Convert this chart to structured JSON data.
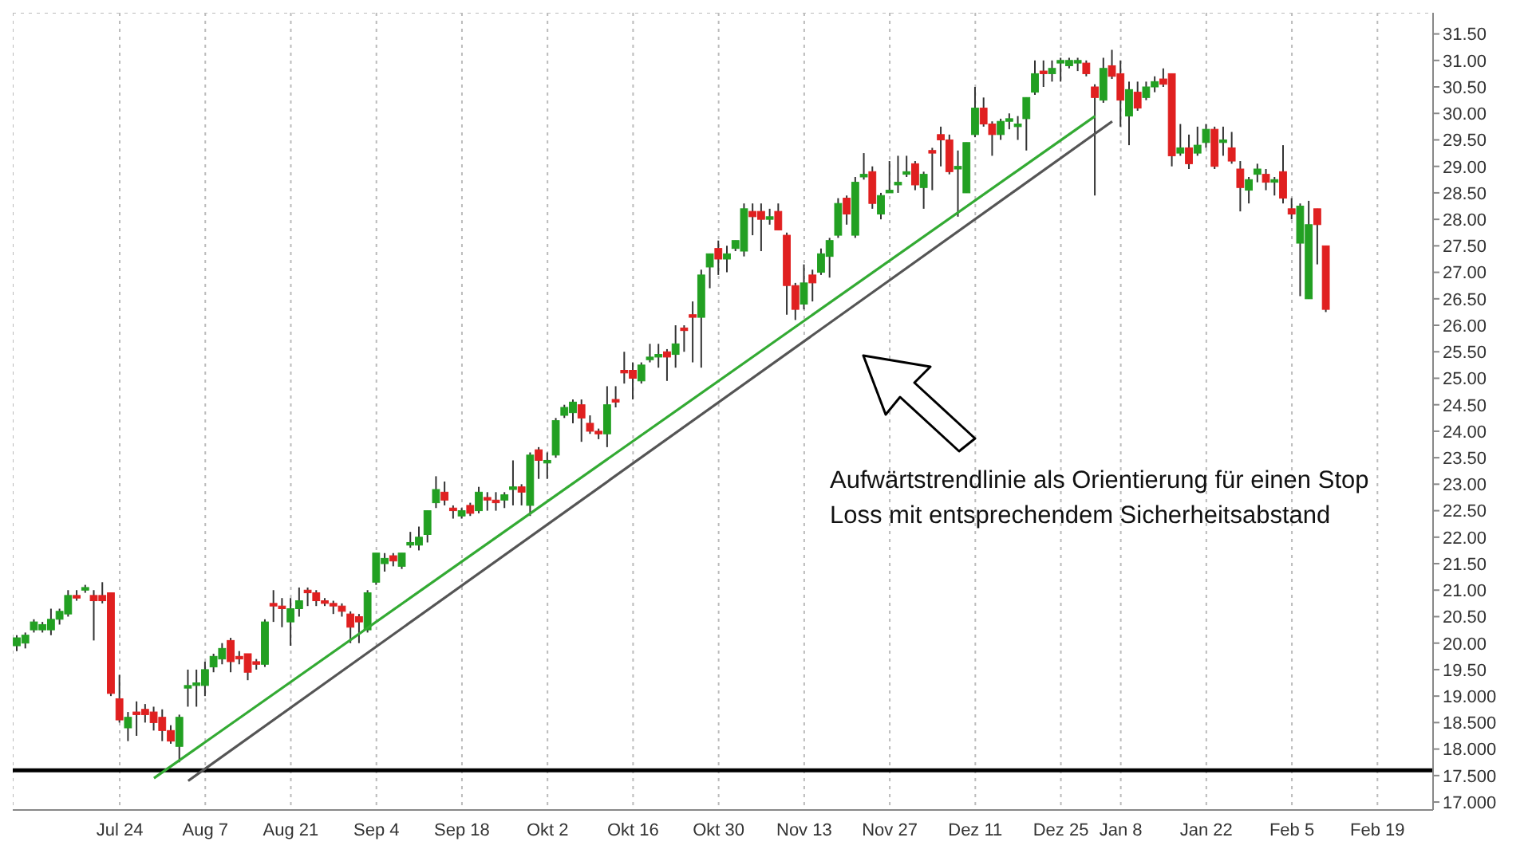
{
  "chart_data": {
    "type": "candlestick",
    "categories": [
      null,
      null,
      null,
      null,
      null,
      null,
      null,
      null,
      null,
      null,
      null,
      null,
      "Jul 24",
      null,
      null,
      null,
      null,
      null,
      null,
      null,
      null,
      null,
      "Aug 7",
      null,
      null,
      null,
      null,
      null,
      null,
      null,
      null,
      null,
      "Aug 21",
      null,
      null,
      null,
      null,
      null,
      null,
      null,
      null,
      null,
      "Sep 4",
      null,
      null,
      null,
      null,
      null,
      null,
      null,
      null,
      null,
      "Sep 18",
      null,
      null,
      null,
      null,
      null,
      null,
      null,
      null,
      null,
      "Okt 2",
      null,
      null,
      null,
      null,
      null,
      null,
      null,
      null,
      null,
      "Okt 16",
      null,
      null,
      null,
      null,
      null,
      null,
      null,
      null,
      null,
      "Okt 30",
      null,
      null,
      null,
      null,
      null,
      null,
      null,
      null,
      null,
      "Nov 13",
      null,
      null,
      null,
      null,
      null,
      null,
      null,
      null,
      null,
      "Nov 27",
      null,
      null,
      null,
      null,
      null,
      null,
      null,
      null,
      null,
      "Dez 11",
      null,
      null,
      null,
      null,
      null,
      null,
      null,
      null,
      null,
      "Dez 25",
      null,
      null,
      null,
      null,
      null,
      null,
      "Jan 8",
      null,
      null,
      null,
      null,
      null,
      null,
      null,
      null,
      null,
      "Jan 22",
      null,
      null,
      null,
      null,
      null,
      null,
      null,
      null,
      null,
      "Feb 5",
      null,
      null,
      null,
      null,
      null,
      null,
      null,
      null,
      null,
      "Feb 19",
      null,
      null,
      null,
      null,
      null,
      null
    ],
    "ohlc": [
      [
        19.95,
        20.15,
        19.85,
        20.1
      ],
      [
        20.0,
        20.2,
        19.9,
        20.15
      ],
      [
        20.25,
        20.45,
        20.2,
        20.4
      ],
      [
        20.25,
        20.4,
        20.2,
        20.35
      ],
      [
        20.25,
        20.65,
        20.15,
        20.45
      ],
      [
        20.45,
        20.65,
        20.35,
        20.6
      ],
      [
        20.55,
        21.0,
        20.5,
        20.9
      ],
      [
        20.9,
        21.0,
        20.8,
        20.85
      ],
      [
        21.0,
        21.1,
        20.95,
        21.05
      ],
      [
        20.9,
        21.0,
        20.05,
        20.8
      ],
      [
        20.9,
        21.15,
        20.75,
        20.8
      ],
      [
        20.95,
        20.95,
        19.0,
        19.05
      ],
      [
        18.95,
        19.4,
        18.5,
        18.55
      ],
      [
        18.4,
        18.7,
        18.15,
        18.6
      ],
      [
        18.7,
        18.9,
        18.25,
        18.65
      ],
      [
        18.75,
        18.85,
        18.5,
        18.65
      ],
      [
        18.7,
        18.8,
        18.35,
        18.5
      ],
      [
        18.6,
        18.75,
        18.15,
        18.35
      ],
      [
        18.35,
        18.45,
        18.1,
        18.15
      ],
      [
        18.05,
        18.65,
        17.75,
        18.6
      ],
      [
        19.15,
        19.5,
        18.8,
        19.2
      ],
      [
        19.2,
        19.5,
        18.8,
        19.25
      ],
      [
        19.2,
        19.65,
        19.0,
        19.5
      ],
      [
        19.55,
        19.8,
        19.45,
        19.75
      ],
      [
        19.7,
        20.0,
        19.6,
        19.9
      ],
      [
        20.05,
        20.1,
        19.45,
        19.65
      ],
      [
        19.75,
        19.85,
        19.6,
        19.7
      ],
      [
        19.8,
        19.8,
        19.3,
        19.45
      ],
      [
        19.65,
        19.7,
        19.5,
        19.6
      ],
      [
        19.6,
        20.45,
        19.55,
        20.4
      ],
      [
        20.75,
        21.0,
        20.4,
        20.7
      ],
      [
        20.7,
        20.85,
        20.3,
        20.65
      ],
      [
        20.4,
        20.85,
        19.95,
        20.65
      ],
      [
        20.65,
        21.05,
        20.5,
        20.8
      ],
      [
        21.0,
        21.05,
        20.7,
        20.95
      ],
      [
        20.95,
        21.0,
        20.7,
        20.8
      ],
      [
        20.8,
        20.85,
        20.7,
        20.75
      ],
      [
        20.75,
        20.8,
        20.55,
        20.7
      ],
      [
        20.7,
        20.75,
        20.5,
        20.6
      ],
      [
        20.55,
        20.6,
        20.0,
        20.3
      ],
      [
        20.5,
        20.55,
        20.0,
        20.4
      ],
      [
        20.25,
        21.0,
        20.2,
        20.95
      ],
      [
        21.15,
        21.7,
        21.1,
        21.7
      ],
      [
        21.5,
        21.7,
        21.35,
        21.6
      ],
      [
        21.65,
        21.7,
        21.45,
        21.55
      ],
      [
        21.45,
        21.7,
        21.4,
        21.7
      ],
      [
        21.85,
        22.1,
        21.8,
        21.9
      ],
      [
        21.85,
        22.2,
        21.75,
        22.0
      ],
      [
        22.05,
        22.5,
        21.9,
        22.5
      ],
      [
        22.65,
        23.15,
        22.55,
        22.9
      ],
      [
        22.85,
        23.05,
        22.6,
        22.7
      ],
      [
        22.55,
        22.6,
        22.35,
        22.5
      ],
      [
        22.4,
        22.55,
        22.35,
        22.5
      ],
      [
        22.6,
        22.65,
        22.4,
        22.45
      ],
      [
        22.5,
        22.95,
        22.45,
        22.85
      ],
      [
        22.75,
        22.85,
        22.5,
        22.7
      ],
      [
        22.7,
        22.85,
        22.5,
        22.65
      ],
      [
        22.7,
        22.85,
        22.55,
        22.8
      ],
      [
        22.9,
        23.45,
        22.6,
        22.95
      ],
      [
        22.95,
        23.0,
        22.6,
        22.85
      ],
      [
        22.6,
        23.6,
        22.4,
        23.55
      ],
      [
        23.65,
        23.7,
        23.1,
        23.45
      ],
      [
        23.4,
        23.6,
        23.1,
        23.45
      ],
      [
        23.55,
        24.25,
        23.5,
        24.2
      ],
      [
        24.3,
        24.5,
        24.25,
        24.45
      ],
      [
        24.35,
        24.6,
        24.15,
        24.55
      ],
      [
        24.5,
        24.6,
        23.8,
        24.25
      ],
      [
        24.15,
        24.3,
        23.95,
        24.0
      ],
      [
        24.0,
        24.05,
        23.85,
        23.95
      ],
      [
        23.95,
        24.85,
        23.7,
        24.5
      ],
      [
        24.6,
        24.85,
        24.45,
        24.55
      ],
      [
        25.15,
        25.5,
        24.9,
        25.1
      ],
      [
        25.15,
        25.3,
        24.6,
        25.0
      ],
      [
        24.95,
        25.3,
        24.9,
        25.25
      ],
      [
        25.35,
        25.65,
        25.3,
        25.4
      ],
      [
        25.4,
        25.65,
        25.2,
        25.45
      ],
      [
        25.5,
        25.55,
        24.95,
        25.4
      ],
      [
        25.45,
        26.0,
        25.2,
        25.65
      ],
      [
        25.95,
        26.0,
        25.5,
        25.9
      ],
      [
        26.2,
        26.45,
        25.3,
        26.15
      ],
      [
        26.15,
        27.05,
        25.2,
        26.95
      ],
      [
        27.1,
        27.35,
        26.7,
        27.35
      ],
      [
        27.45,
        27.6,
        26.95,
        27.25
      ],
      [
        27.25,
        27.5,
        27.0,
        27.35
      ],
      [
        27.45,
        27.6,
        27.4,
        27.6
      ],
      [
        27.4,
        28.3,
        27.3,
        28.2
      ],
      [
        28.15,
        28.3,
        27.7,
        28.05
      ],
      [
        28.15,
        28.3,
        27.4,
        28.0
      ],
      [
        28.0,
        28.2,
        27.9,
        28.05
      ],
      [
        28.15,
        28.3,
        27.8,
        27.8
      ],
      [
        27.7,
        27.75,
        26.2,
        26.75
      ],
      [
        26.75,
        26.8,
        26.1,
        26.3
      ],
      [
        26.4,
        27.15,
        26.3,
        26.8
      ],
      [
        26.95,
        27.05,
        26.45,
        26.8
      ],
      [
        27.0,
        27.45,
        26.95,
        27.35
      ],
      [
        27.3,
        27.65,
        26.9,
        27.6
      ],
      [
        27.7,
        28.4,
        27.65,
        28.3
      ],
      [
        28.4,
        28.45,
        27.9,
        28.1
      ],
      [
        27.7,
        28.8,
        27.65,
        28.7
      ],
      [
        28.8,
        29.25,
        28.75,
        28.85
      ],
      [
        28.9,
        29.0,
        28.2,
        28.3
      ],
      [
        28.1,
        28.5,
        28.0,
        28.45
      ],
      [
        28.5,
        29.1,
        28.5,
        28.55
      ],
      [
        28.65,
        29.2,
        28.5,
        28.7
      ],
      [
        28.85,
        29.2,
        28.8,
        28.9
      ],
      [
        29.05,
        29.1,
        28.55,
        28.65
      ],
      [
        28.6,
        28.9,
        28.2,
        28.85
      ],
      [
        29.3,
        29.35,
        28.55,
        29.25
      ],
      [
        29.6,
        29.75,
        29.0,
        29.5
      ],
      [
        29.5,
        29.6,
        28.85,
        28.9
      ],
      [
        28.95,
        29.3,
        28.05,
        29.0
      ],
      [
        28.5,
        29.45,
        28.5,
        29.45
      ],
      [
        29.6,
        30.5,
        29.55,
        30.1
      ],
      [
        30.1,
        30.3,
        29.75,
        29.8
      ],
      [
        29.8,
        29.85,
        29.2,
        29.6
      ],
      [
        29.6,
        29.9,
        29.5,
        29.85
      ],
      [
        29.85,
        30.0,
        29.7,
        29.9
      ],
      [
        29.75,
        29.95,
        29.5,
        29.8
      ],
      [
        29.9,
        30.3,
        29.3,
        30.3
      ],
      [
        30.4,
        31.0,
        30.35,
        30.75
      ],
      [
        30.8,
        31.0,
        30.5,
        30.75
      ],
      [
        30.75,
        31.0,
        30.6,
        30.85
      ],
      [
        30.95,
        31.05,
        30.6,
        31.0
      ],
      [
        30.9,
        31.05,
        30.85,
        31.0
      ],
      [
        30.95,
        31.05,
        30.8,
        31.0
      ],
      [
        30.95,
        31.0,
        30.7,
        30.75
      ],
      [
        30.5,
        30.55,
        28.45,
        30.3
      ],
      [
        30.25,
        31.05,
        30.2,
        30.85
      ],
      [
        30.9,
        31.2,
        30.65,
        30.7
      ],
      [
        30.75,
        31.0,
        29.75,
        30.25
      ],
      [
        29.95,
        30.6,
        29.4,
        30.45
      ],
      [
        30.4,
        30.6,
        30.05,
        30.1
      ],
      [
        30.3,
        30.6,
        30.25,
        30.5
      ],
      [
        30.5,
        30.7,
        30.4,
        30.6
      ],
      [
        30.65,
        30.85,
        30.5,
        30.55
      ],
      [
        30.75,
        30.75,
        29.0,
        29.2
      ],
      [
        29.25,
        29.8,
        29.2,
        29.35
      ],
      [
        29.35,
        29.6,
        28.95,
        29.05
      ],
      [
        29.25,
        29.75,
        29.2,
        29.4
      ],
      [
        29.45,
        29.8,
        29.35,
        29.7
      ],
      [
        29.7,
        29.75,
        28.95,
        29.0
      ],
      [
        29.45,
        29.75,
        29.2,
        29.5
      ],
      [
        29.35,
        29.65,
        29.05,
        29.1
      ],
      [
        28.95,
        29.1,
        28.15,
        28.6
      ],
      [
        28.55,
        28.8,
        28.3,
        28.75
      ],
      [
        28.85,
        29.05,
        28.7,
        28.95
      ],
      [
        28.85,
        28.95,
        28.55,
        28.7
      ],
      [
        28.7,
        28.8,
        28.45,
        28.75
      ],
      [
        28.9,
        29.4,
        28.3,
        28.4
      ],
      [
        28.2,
        28.4,
        28.0,
        28.1
      ],
      [
        27.55,
        28.3,
        26.55,
        28.25
      ],
      [
        26.5,
        28.35,
        26.5,
        27.9
      ],
      [
        28.2,
        28.2,
        27.15,
        27.9
      ],
      [
        27.5,
        27.5,
        26.25,
        26.3
      ],
      null,
      null,
      null,
      null,
      null,
      null,
      null,
      null,
      null,
      null,
      null,
      null
    ],
    "colors": [
      "#22a022",
      "#22a022",
      "#22a022",
      "#22a022",
      "#22a022",
      "#22a022",
      "#22a022",
      "#e02020",
      "#22a022",
      "#e02020",
      "#e02020",
      "#e02020",
      "#e02020",
      "#22a022",
      "#e02020",
      "#e02020",
      "#e02020",
      "#e02020",
      "#e02020",
      "#22a022",
      "#22a022",
      "#22a022",
      "#22a022",
      "#22a022",
      "#22a022",
      "#e02020",
      "#e02020",
      "#e02020",
      "#e02020",
      "#22a022",
      "#e02020",
      "#e02020",
      "#22a022",
      "#22a022",
      "#e02020",
      "#e02020",
      "#e02020",
      "#e02020",
      "#e02020",
      "#e02020",
      "#e02020",
      "#22a022",
      "#22a022",
      "#22a022",
      "#e02020",
      "#22a022",
      "#22a022",
      "#22a022",
      "#22a022",
      "#22a022",
      "#e02020",
      "#e02020",
      "#22a022",
      "#e02020",
      "#22a022",
      "#e02020",
      "#e02020",
      "#22a022",
      "#22a022",
      "#e02020",
      "#22a022",
      "#e02020",
      "#22a022",
      "#22a022",
      "#22a022",
      "#22a022",
      "#e02020",
      "#e02020",
      "#e02020",
      "#22a022",
      "#e02020",
      "#e02020",
      "#e02020",
      "#22a022",
      "#22a022",
      "#22a022",
      "#e02020",
      "#22a022",
      "#e02020",
      "#e02020",
      "#22a022",
      "#22a022",
      "#e02020",
      "#22a022",
      "#22a022",
      "#22a022",
      "#e02020",
      "#e02020",
      "#22a022",
      "#e02020",
      "#e02020",
      "#e02020",
      "#22a022",
      "#e02020",
      "#22a022",
      "#22a022",
      "#22a022",
      "#e02020",
      "#22a022",
      "#22a022",
      "#e02020",
      "#22a022",
      "#22a022",
      "#22a022",
      "#22a022",
      "#e02020",
      "#22a022",
      "#e02020",
      "#e02020",
      "#e02020",
      "#22a022",
      "#22a022",
      "#22a022",
      "#e02020",
      "#e02020",
      "#22a022",
      "#22a022",
      "#22a022",
      "#22a022",
      "#22a022",
      "#e02020",
      "#22a022",
      "#22a022",
      "#22a022",
      "#22a022",
      "#e02020",
      "#e02020",
      "#22a022",
      "#e02020",
      "#e02020",
      "#22a022",
      "#e02020",
      "#22a022",
      "#22a022",
      "#e02020",
      "#e02020",
      "#22a022",
      "#e02020",
      "#22a022",
      "#22a022",
      "#e02020",
      "#22a022",
      "#e02020",
      "#e02020",
      "#22a022",
      "#22a022",
      "#e02020",
      "#22a022",
      "#e02020",
      "#e02020",
      "#22a022",
      "#22a022",
      "#e02020",
      "#e02020",
      null,
      null,
      null,
      null,
      null,
      null,
      null,
      null,
      null,
      null,
      null,
      null
    ],
    "series": [
      {
        "type": "line",
        "color": "#33aa33",
        "values": [
          null,
          null,
          null,
          null,
          null,
          null,
          null,
          null,
          null,
          null,
          null,
          null,
          null,
          null,
          null,
          null,
          17.45,
          null,
          null,
          null,
          null,
          null,
          null,
          null,
          null,
          null,
          null,
          null,
          null,
          null,
          null,
          null,
          null,
          null,
          null,
          null,
          null,
          null,
          null,
          null,
          null,
          null,
          null,
          null,
          null,
          null,
          null,
          null,
          null,
          null,
          null,
          null,
          null,
          null,
          null,
          null,
          null,
          null,
          null,
          null,
          null,
          null,
          null,
          null,
          null,
          null,
          null,
          null,
          null,
          null,
          null,
          null,
          null,
          null,
          null,
          null,
          null,
          null,
          null,
          null,
          null,
          null,
          null,
          null,
          null,
          null,
          null,
          null,
          null,
          null,
          null,
          null,
          null,
          null,
          null,
          null,
          null,
          null,
          null,
          null,
          null,
          null,
          null,
          null,
          null,
          null,
          null,
          null,
          null,
          null,
          null,
          null,
          null,
          null,
          null,
          null,
          null,
          null,
          null,
          null,
          null,
          null,
          null,
          null,
          null,
          null,
          29.95,
          null,
          null,
          null,
          null,
          null,
          null,
          null,
          null,
          null,
          null,
          null,
          null,
          null,
          null,
          null,
          null,
          null,
          null,
          null,
          null,
          null,
          null,
          null,
          null,
          null,
          null,
          null,
          null,
          null,
          null,
          null,
          null,
          null,
          null,
          null,
          null,
          null,
          null,
          null
        ]
      },
      {
        "type": "line",
        "color": "#555555",
        "values": [
          null,
          null,
          null,
          null,
          null,
          null,
          null,
          null,
          null,
          null,
          null,
          null,
          null,
          null,
          null,
          null,
          null,
          null,
          null,
          null,
          17.4,
          null,
          null,
          null,
          null,
          null,
          null,
          null,
          null,
          null,
          null,
          null,
          null,
          null,
          null,
          null,
          null,
          null,
          null,
          null,
          null,
          null,
          null,
          null,
          null,
          null,
          null,
          null,
          null,
          null,
          null,
          null,
          null,
          null,
          null,
          null,
          null,
          null,
          null,
          null,
          null,
          null,
          null,
          null,
          null,
          null,
          null,
          null,
          null,
          null,
          null,
          null,
          null,
          null,
          null,
          null,
          null,
          null,
          null,
          null,
          null,
          null,
          null,
          null,
          null,
          null,
          null,
          null,
          null,
          null,
          null,
          null,
          null,
          null,
          null,
          null,
          null,
          null,
          null,
          null,
          null,
          null,
          null,
          null,
          null,
          null,
          null,
          null,
          null,
          null,
          null,
          null,
          null,
          null,
          null,
          null,
          null,
          null,
          null,
          null,
          null,
          null,
          null,
          null,
          null,
          null,
          null,
          null,
          29.85,
          null,
          null,
          null,
          null,
          null,
          null,
          null,
          null,
          null,
          null,
          null,
          null,
          null,
          null,
          null,
          null,
          null,
          null,
          null,
          null,
          null,
          null,
          null,
          null,
          null,
          null,
          null,
          null,
          null,
          null,
          null,
          null,
          null,
          null,
          null,
          null,
          null
        ]
      }
    ],
    "ylim": [
      16.85,
      31.9
    ],
    "yticks": [
      {
        "value": 17,
        "label": "17.000"
      },
      {
        "value": 17.5,
        "label": "17.500"
      },
      {
        "value": 18,
        "label": "18.000"
      },
      {
        "value": 18.5,
        "label": "18.500"
      },
      {
        "value": 19,
        "label": "19.000"
      },
      {
        "value": 19.5,
        "label": "19.50"
      },
      {
        "value": 20,
        "label": "20.00"
      },
      {
        "value": 20.5,
        "label": "20.50"
      },
      {
        "value": 21,
        "label": "21.00"
      },
      {
        "value": 21.5,
        "label": "21.50"
      },
      {
        "value": 22,
        "label": "22.00"
      },
      {
        "value": 22.5,
        "label": "22.50"
      },
      {
        "value": 23,
        "label": "23.00"
      },
      {
        "value": 23.5,
        "label": "23.50"
      },
      {
        "value": 24,
        "label": "24.00"
      },
      {
        "value": 24.5,
        "label": "24.50"
      },
      {
        "value": 25,
        "label": "25.00"
      },
      {
        "value": 25.5,
        "label": "25.50"
      },
      {
        "value": 26,
        "label": "26.00"
      },
      {
        "value": 26.5,
        "label": "26.50"
      },
      {
        "value": 27,
        "label": "27.00"
      },
      {
        "value": 27.5,
        "label": "27.50"
      },
      {
        "value": 28,
        "label": "28.00"
      },
      {
        "value": 28.5,
        "label": "28.50"
      },
      {
        "value": 29,
        "label": "29.00"
      },
      {
        "value": 29.5,
        "label": "29.50"
      },
      {
        "value": 30,
        "label": "30.00"
      },
      {
        "value": 30.5,
        "label": "30.50"
      },
      {
        "value": 31,
        "label": "31.00"
      },
      {
        "value": 31.5,
        "label": "31.50"
      }
    ],
    "grid": true,
    "ref_lines": [
      {
        "axis": "y",
        "value": 17.6,
        "color": "#000000"
      }
    ],
    "annotations": [
      "Aufwärtstrendlinie als Orientierung für einen Stop Loss mit entsprechendem Sicherheitsabstand"
    ]
  }
}
